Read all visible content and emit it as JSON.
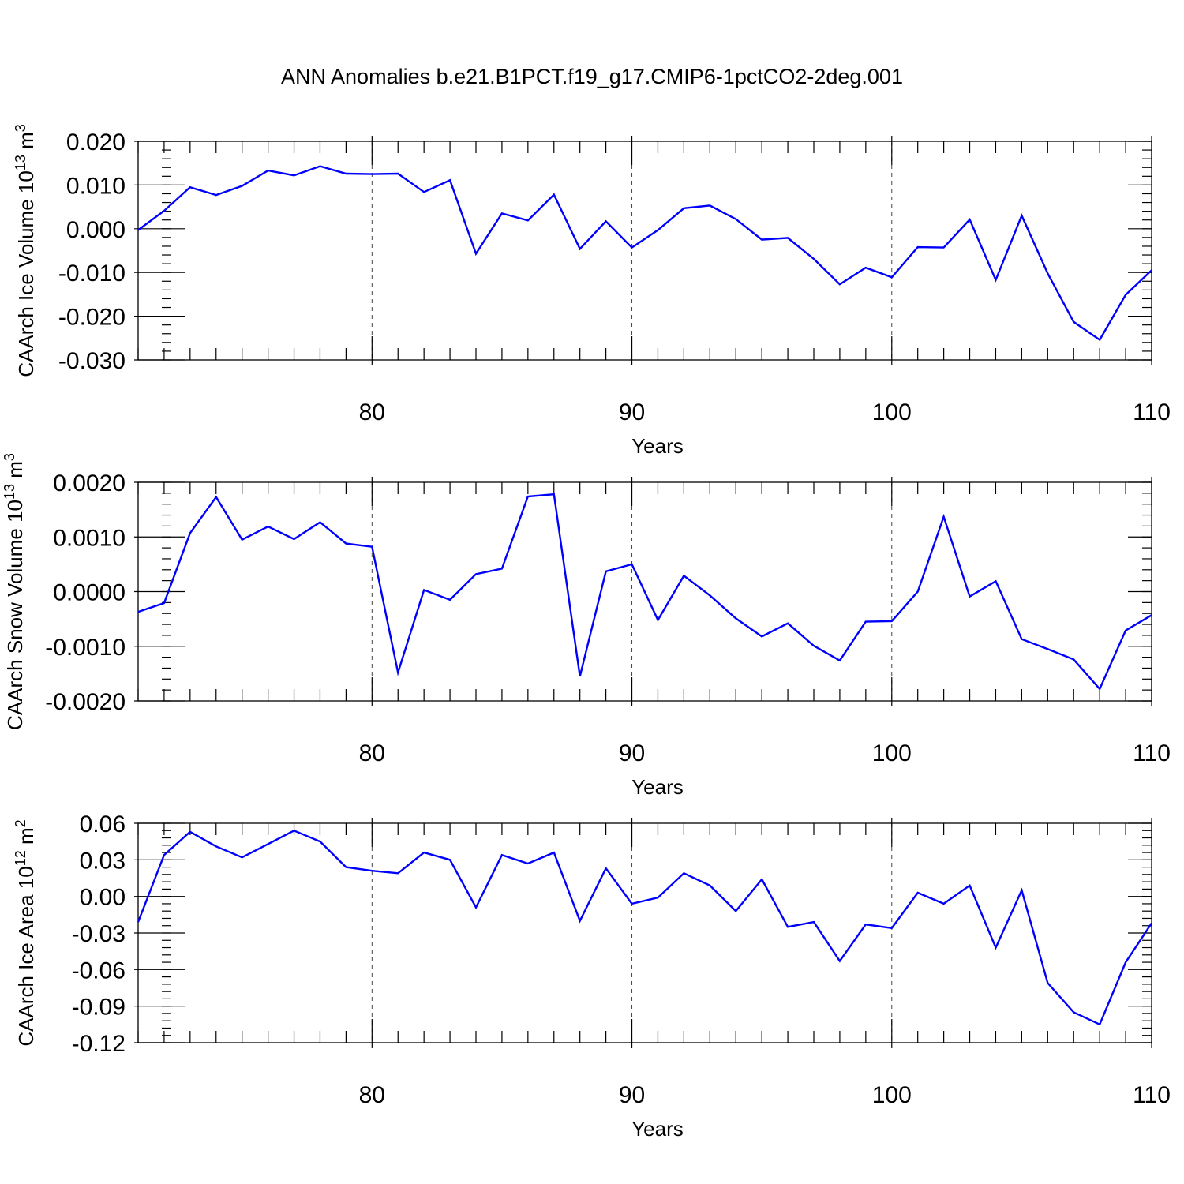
{
  "title": "ANN Anomalies b.e21.B1PCT.f19_g17.CMIP6-1pctCO2-2deg.001",
  "chart_data": [
    {
      "type": "line",
      "title": "ANN Anomalies b.e21.B1PCT.f19_g17.CMIP6-1pctCO2-2deg.001",
      "xlabel": "Years",
      "ylabel": "CAArch Ice Volume",
      "ylabel_unit": "10",
      "ylabel_exp": "13",
      "ylabel_unit2": " m",
      "ylabel_exp2": "3",
      "xlim": [
        71,
        110
      ],
      "ylim": [
        -0.03,
        0.02
      ],
      "x_ticks": [
        80,
        90,
        100,
        110
      ],
      "y_ticks": [
        0.02,
        0.01,
        0.0,
        -0.01,
        -0.02,
        -0.03
      ],
      "y_tick_labels": [
        "0.020",
        "0.010",
        "0.000",
        "-0.010",
        "-0.020",
        "-0.030"
      ],
      "x_minor_step": 1,
      "y_minor_step": 0.002,
      "series": [
        {
          "name": "CAArch Ice Volume",
          "color": "#0000ff",
          "x": [
            71,
            72,
            73,
            74,
            75,
            76,
            77,
            78,
            79,
            80,
            81,
            82,
            83,
            84,
            85,
            86,
            87,
            88,
            89,
            90,
            91,
            92,
            93,
            94,
            95,
            96,
            97,
            98,
            99,
            100,
            101,
            102,
            103,
            104,
            105,
            106,
            107,
            108,
            109,
            110
          ],
          "values": [
            -0.0003,
            0.0041,
            0.0095,
            0.0077,
            0.0098,
            0.0133,
            0.0122,
            0.0143,
            0.0126,
            0.0125,
            0.0126,
            0.0084,
            0.0111,
            -0.0057,
            0.0035,
            0.0019,
            0.0078,
            -0.0046,
            0.0017,
            -0.0043,
            -0.0003,
            0.0047,
            0.0053,
            0.0022,
            -0.0025,
            -0.0021,
            -0.0069,
            -0.0127,
            -0.0089,
            -0.0111,
            -0.0042,
            -0.0043,
            0.0021,
            -0.0117,
            0.003,
            -0.0102,
            -0.0213,
            -0.0254,
            -0.0151,
            -0.0095
          ]
        }
      ]
    },
    {
      "type": "line",
      "xlabel": "Years",
      "ylabel": "CAArch Snow Volume",
      "ylabel_unit": "10",
      "ylabel_exp": "13",
      "ylabel_unit2": " m",
      "ylabel_exp2": "3",
      "xlim": [
        71,
        110
      ],
      "ylim": [
        -0.002,
        0.002
      ],
      "x_ticks": [
        80,
        90,
        100,
        110
      ],
      "y_ticks": [
        0.002,
        0.001,
        0.0,
        -0.001,
        -0.002
      ],
      "y_tick_labels": [
        "0.0020",
        "0.0010",
        "0.0000",
        "-0.0010",
        "-0.0020"
      ],
      "x_minor_step": 1,
      "y_minor_step": 0.0002,
      "series": [
        {
          "name": "CAArch Snow Volume",
          "color": "#0000ff",
          "x": [
            71,
            72,
            73,
            74,
            75,
            76,
            77,
            78,
            79,
            80,
            81,
            82,
            83,
            84,
            85,
            86,
            87,
            88,
            89,
            90,
            91,
            92,
            93,
            94,
            95,
            96,
            97,
            98,
            99,
            100,
            101,
            102,
            103,
            104,
            105,
            106,
            107,
            108,
            109,
            110
          ],
          "values": [
            -0.00037,
            -0.00021,
            0.00107,
            0.00173,
            0.00095,
            0.00119,
            0.00096,
            0.00127,
            0.00088,
            0.00082,
            -0.00148,
            3e-05,
            -0.00015,
            0.00032,
            0.00042,
            0.00174,
            0.00178,
            -0.00155,
            0.00037,
            0.0005,
            -0.00052,
            0.00029,
            -7e-05,
            -0.00049,
            -0.00082,
            -0.00058,
            -0.00099,
            -0.00126,
            -0.00055,
            -0.00054,
            0.0,
            0.00137,
            -9e-05,
            0.00019,
            -0.00087,
            -0.00105,
            -0.00124,
            -0.00178,
            -0.00071,
            -0.00043
          ]
        }
      ]
    },
    {
      "type": "line",
      "xlabel": "Years",
      "ylabel": "CAArch Ice Area",
      "ylabel_unit": "10",
      "ylabel_exp": "12",
      "ylabel_unit2": " m",
      "ylabel_exp2": "2",
      "xlim": [
        71,
        110
      ],
      "ylim": [
        -0.12,
        0.06
      ],
      "x_ticks": [
        80,
        90,
        100,
        110
      ],
      "y_ticks": [
        0.06,
        0.03,
        0.0,
        -0.03,
        -0.06,
        -0.09,
        -0.12
      ],
      "y_tick_labels": [
        "0.06",
        "0.03",
        "0.00",
        "-0.03",
        "-0.06",
        "-0.09",
        "-0.12"
      ],
      "x_minor_step": 1,
      "y_minor_step": 0.006,
      "series": [
        {
          "name": "CAArch Ice Area",
          "color": "#0000ff",
          "x": [
            71,
            72,
            73,
            74,
            75,
            76,
            77,
            78,
            79,
            80,
            81,
            82,
            83,
            84,
            85,
            86,
            87,
            88,
            89,
            90,
            91,
            92,
            93,
            94,
            95,
            96,
            97,
            98,
            99,
            100,
            101,
            102,
            103,
            104,
            105,
            106,
            107,
            108,
            109,
            110
          ],
          "values": [
            -0.021,
            0.034,
            0.053,
            0.041,
            0.032,
            0.043,
            0.054,
            0.045,
            0.024,
            0.021,
            0.019,
            0.036,
            0.03,
            -0.009,
            0.034,
            0.027,
            0.036,
            -0.02,
            0.023,
            -0.006,
            -0.001,
            0.019,
            0.009,
            -0.012,
            0.014,
            -0.025,
            -0.021,
            -0.053,
            -0.023,
            -0.026,
            0.003,
            -0.006,
            0.009,
            -0.042,
            0.005,
            -0.071,
            -0.095,
            -0.105,
            -0.054,
            -0.022
          ]
        }
      ]
    }
  ]
}
